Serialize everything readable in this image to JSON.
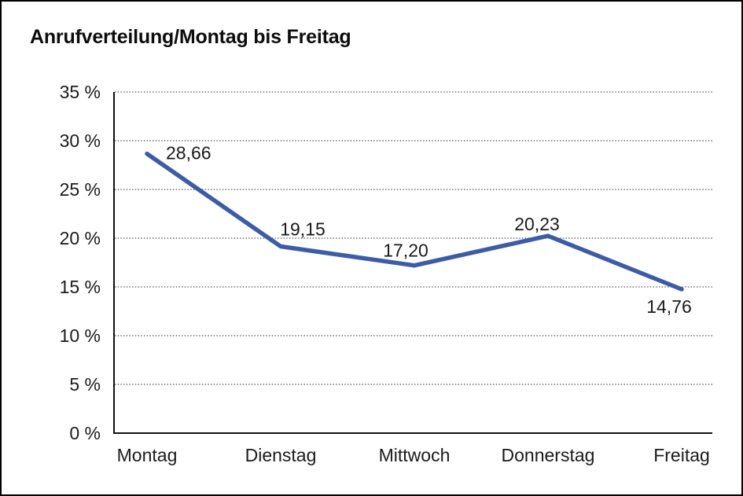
{
  "chart_data": {
    "type": "line",
    "title": "Anrufverteilung/Montag bis Freitag",
    "categories": [
      "Montag",
      "Dienstag",
      "Mittwoch",
      "Donnerstag",
      "Freitag"
    ],
    "series": [
      {
        "name": "Anrufverteilung",
        "values": [
          28.66,
          19.15,
          17.2,
          20.23,
          14.76
        ],
        "point_labels": [
          "28,66",
          "19,15",
          "17,20",
          "20,23",
          "14,76"
        ]
      }
    ],
    "xlabel": "",
    "ylabel": "",
    "ylim": [
      0,
      35
    ],
    "y_tick_step": 5,
    "y_tick_labels": [
      "0 %",
      "5 %",
      "10 %",
      "15 %",
      "20 %",
      "25 %",
      "30 %",
      "35 %"
    ],
    "grid": "horizontal-dotted",
    "legend": "none",
    "line_color": "#3C5CA8",
    "axis_color": "#111111",
    "label_color": "#1a1a1a",
    "background_color": "#ffffff",
    "border_color": "#000000"
  }
}
